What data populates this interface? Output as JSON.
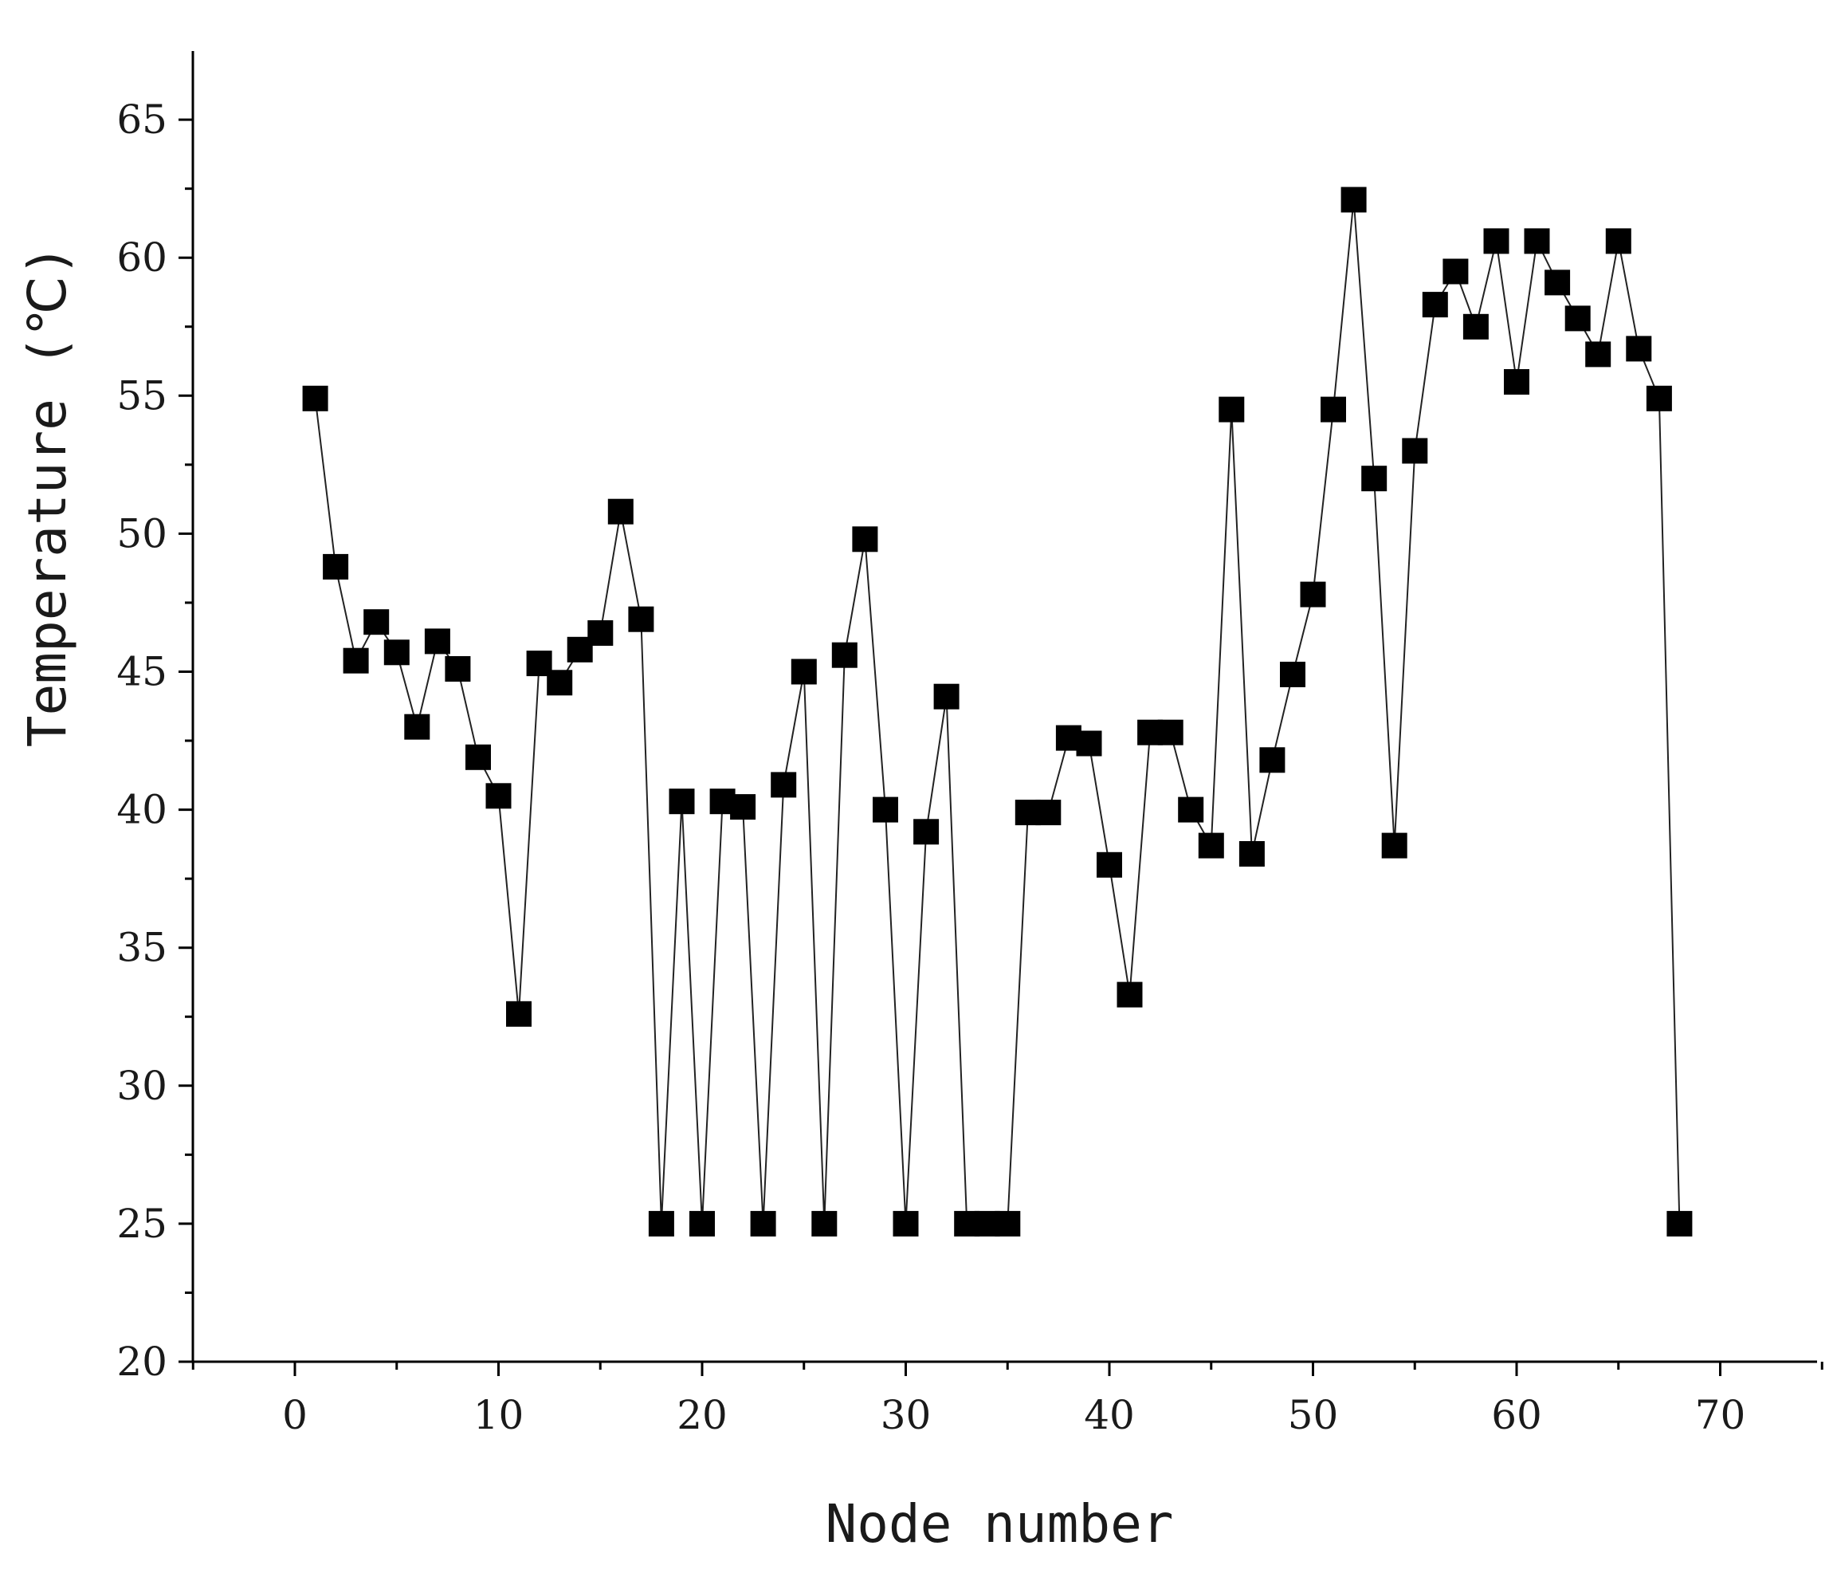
{
  "chart_data": {
    "type": "line",
    "title": "",
    "xlabel": "Node number",
    "ylabel": "Temperature (℃)",
    "xlim": [
      -5,
      75
    ],
    "ylim": [
      20,
      67.5
    ],
    "x_ticks": [
      0,
      10,
      20,
      30,
      40,
      50,
      60,
      70
    ],
    "x_tick_labels": [
      "0",
      "10",
      "20",
      "30",
      "40",
      "50",
      "60",
      "70"
    ],
    "y_ticks": [
      20,
      25,
      30,
      35,
      40,
      45,
      50,
      55,
      60,
      65
    ],
    "y_tick_labels": [
      "20",
      "25",
      "30",
      "35",
      "40",
      "45",
      "50",
      "55",
      "60",
      "65"
    ],
    "grid": false,
    "marker": "square",
    "color": "#000000",
    "series": [
      {
        "x": [
          1,
          2,
          3,
          4,
          5,
          6,
          7,
          8,
          9,
          10,
          11,
          12,
          13,
          14,
          15,
          16,
          17,
          18,
          19,
          20,
          21,
          22,
          23,
          24,
          25,
          26,
          27,
          28,
          29,
          30,
          31,
          32,
          33,
          34,
          35,
          36,
          37,
          38,
          39,
          40,
          41,
          42,
          43,
          44,
          45,
          46,
          47,
          48,
          49,
          50,
          51,
          52,
          53,
          54,
          55,
          56,
          57,
          58,
          59,
          60,
          61,
          62,
          63,
          64,
          65,
          66,
          67,
          68
        ],
        "values": [
          54.9,
          48.8,
          45.4,
          46.8,
          45.7,
          43.0,
          46.1,
          45.1,
          41.9,
          40.5,
          32.6,
          45.3,
          44.6,
          45.8,
          46.4,
          50.8,
          46.9,
          25.0,
          40.3,
          25.0,
          40.3,
          40.1,
          25.0,
          40.9,
          45.0,
          25.0,
          45.6,
          49.8,
          40.0,
          25.0,
          39.2,
          44.1,
          25.0,
          25.0,
          25.0,
          39.9,
          39.9,
          42.6,
          42.4,
          38.0,
          33.3,
          42.8,
          42.8,
          40.0,
          38.7,
          54.5,
          38.4,
          41.8,
          44.9,
          47.8,
          54.5,
          62.1,
          52.0,
          38.7,
          53.0,
          58.3,
          59.5,
          57.5,
          60.6,
          55.5,
          60.6,
          59.1,
          57.8,
          56.5,
          60.6,
          56.7,
          54.9,
          25.0
        ]
      }
    ]
  }
}
